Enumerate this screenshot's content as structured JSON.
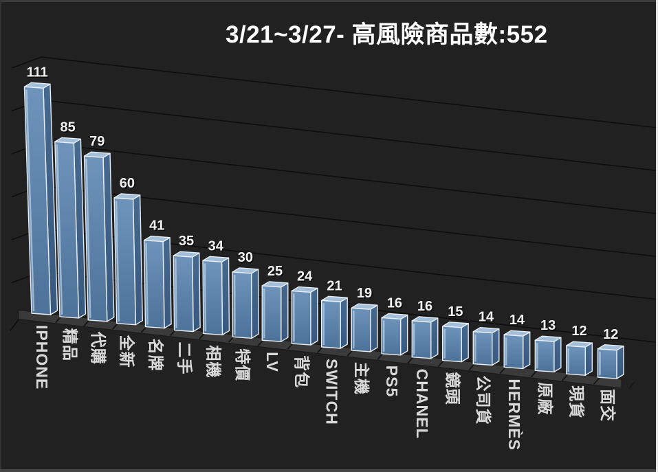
{
  "page": {
    "background": "#212121"
  },
  "chart_data": {
    "type": "bar",
    "style": "3d-column",
    "title": "3/21~3/27- 高風險商品數:552",
    "total_shown_in_title": 552,
    "date_range": "3/21~3/27",
    "categories": [
      "IPHONE",
      "精品",
      "代購",
      "全新",
      "名牌",
      "二手",
      "相機",
      "特價",
      "LV",
      "背包",
      "SWITCH",
      "主機",
      "PS5",
      "CHANEL",
      "鏡頭",
      "公司貨",
      "HERMÈS",
      "原廠",
      "現貨",
      "面交"
    ],
    "values": [
      111,
      85,
      79,
      60,
      41,
      35,
      34,
      30,
      25,
      24,
      21,
      19,
      16,
      16,
      15,
      14,
      14,
      13,
      12,
      12
    ],
    "value_labels_shown": true,
    "xlabel": "",
    "ylabel": "",
    "ylim": [
      0,
      120
    ],
    "gridline_step": 20,
    "grid": true,
    "legend": false,
    "colors": {
      "background": "#212121",
      "bar_front_top": "#6f94bb",
      "bar_front_bottom": "#4d729a",
      "bar_front_bottom_fix": "#4d7299",
      "bar_top": "#a3bfd9",
      "bar_side_top": "#46698f",
      "bar_side_bottom": "#38597f",
      "bar_edge": "#e9eef5",
      "bar_highlight": "#bdd3e6",
      "value_label": "#f2f2f2",
      "category_label": "#d9d9d9",
      "title": "#ffffff",
      "gridline": "#0e0e0e",
      "floor": "#3a3a3a",
      "floor_edge": "#181818"
    }
  }
}
